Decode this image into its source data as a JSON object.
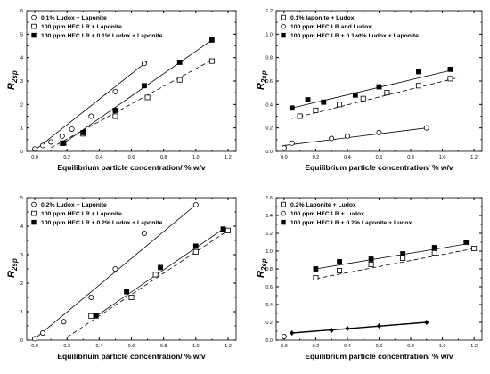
{
  "chart_data": [
    {
      "type": "scatter",
      "title": "",
      "ylabel": "R",
      "ylabel_sub": "2sp",
      "xlabel": "Equilibrium particle concentration/ % w/v",
      "xlim": [
        -0.05,
        1.25
      ],
      "ylim": [
        0,
        6
      ],
      "xticks": [
        "0.0",
        "0.2",
        "0.4",
        "0.6",
        "0.8",
        "1.0",
        "1.2"
      ],
      "yticks": [
        "0",
        "1",
        "2",
        "3",
        "4",
        "5",
        "6"
      ],
      "legend_position": "top-left",
      "series": [
        {
          "name": "0.1% Ludox + Laponite",
          "marker": "open-circle",
          "line": "solid",
          "x": [
            0.0,
            0.05,
            0.1,
            0.17,
            0.23,
            0.35,
            0.5,
            0.68
          ],
          "y": [
            0.1,
            0.25,
            0.4,
            0.65,
            0.95,
            1.5,
            2.55,
            3.75
          ],
          "fit": [
            [
              0.0,
              0.05
            ],
            [
              0.7,
              3.85
            ]
          ]
        },
        {
          "name": "100 ppm HEC LR + Laponite",
          "marker": "open-square",
          "line": "dashed",
          "x": [
            0.17,
            0.3,
            0.5,
            0.7,
            0.9,
            1.1
          ],
          "y": [
            0.35,
            0.75,
            1.5,
            2.3,
            3.05,
            3.85
          ],
          "fit": [
            [
              0.1,
              0.15
            ],
            [
              1.1,
              3.9
            ]
          ]
        },
        {
          "name": "100 ppm HEC LR + 0.1% Ludox + Laponite",
          "marker": "filled-square",
          "line": "solid",
          "x": [
            0.18,
            0.3,
            0.5,
            0.68,
            0.9,
            1.1
          ],
          "y": [
            0.35,
            0.8,
            1.75,
            2.8,
            3.8,
            4.75
          ],
          "fit": [
            [
              0.17,
              0.3
            ],
            [
              1.1,
              4.75
            ]
          ]
        }
      ]
    },
    {
      "type": "scatter",
      "title": "",
      "ylabel": "R",
      "ylabel_sub": "2sp",
      "xlabel": "Equilibrium particle concentration/ % w/v",
      "xlim": [
        -0.05,
        1.25
      ],
      "ylim": [
        0,
        1.2
      ],
      "xticks": [
        "0.0",
        "0.2",
        "0.4",
        "0.6",
        "0.8",
        "1.0",
        "1.2"
      ],
      "yticks": [
        "0.0",
        "0.2",
        "0.4",
        "0.6",
        "0.8",
        "1.0",
        "1.2"
      ],
      "legend_position": "top-left",
      "series": [
        {
          "name": "0.1% laponite + Ludox",
          "marker": "open-square",
          "line": "dashed",
          "x": [
            0.1,
            0.2,
            0.35,
            0.5,
            0.65,
            0.85,
            1.05
          ],
          "y": [
            0.3,
            0.35,
            0.4,
            0.45,
            0.5,
            0.56,
            0.62
          ],
          "fit": [
            [
              0.05,
              0.28
            ],
            [
              1.1,
              0.63
            ]
          ]
        },
        {
          "name": "100 ppm HEC LR and Ludox",
          "marker": "open-circle",
          "line": "solid",
          "x": [
            0.0,
            0.05,
            0.3,
            0.4,
            0.6,
            0.9
          ],
          "y": [
            0.03,
            0.07,
            0.11,
            0.13,
            0.16,
            0.2
          ],
          "fit": [
            [
              0.0,
              0.05
            ],
            [
              0.9,
              0.2
            ]
          ]
        },
        {
          "name": "100 ppm HEC LR + 0.1wt% Ludox + Laponite",
          "marker": "filled-square",
          "line": "solid",
          "x": [
            0.05,
            0.15,
            0.25,
            0.45,
            0.6,
            0.85,
            1.05
          ],
          "y": [
            0.37,
            0.44,
            0.42,
            0.48,
            0.55,
            0.68,
            0.7
          ],
          "fit": [
            [
              0.05,
              0.37
            ],
            [
              1.05,
              0.69
            ]
          ]
        }
      ]
    },
    {
      "type": "scatter",
      "title": "",
      "ylabel": "R",
      "ylabel_sub": "2sp",
      "xlabel": "Equilibrium particle concentration/ % w/v",
      "xlim": [
        -0.05,
        1.25
      ],
      "ylim": [
        0,
        5
      ],
      "xticks": [
        "0.0",
        "0.2",
        "0.4",
        "0.6",
        "0.8",
        "1.0",
        "1.2"
      ],
      "yticks": [
        "0",
        "1",
        "2",
        "3",
        "4",
        "5"
      ],
      "legend_position": "top-left",
      "series": [
        {
          "name": "0.2% Ludox + Laponite",
          "marker": "open-circle",
          "line": "solid",
          "x": [
            0.0,
            0.05,
            0.18,
            0.35,
            0.5,
            0.68,
            1.0
          ],
          "y": [
            0.05,
            0.25,
            0.65,
            1.5,
            2.5,
            3.75,
            4.75
          ],
          "fit": [
            [
              0.0,
              0.05
            ],
            [
              1.0,
              4.75
            ]
          ]
        },
        {
          "name": "100 ppm HEC LR + Laponite",
          "marker": "open-square",
          "line": "dashed",
          "x": [
            0.35,
            0.6,
            0.75,
            1.0,
            1.2
          ],
          "y": [
            0.85,
            1.5,
            2.3,
            3.1,
            3.85
          ],
          "fit": [
            [
              0.2,
              0.1
            ],
            [
              1.2,
              3.85
            ]
          ]
        },
        {
          "name": "100 ppm HEC LR + 0.2% Ludox + Laponite",
          "marker": "filled-square",
          "line": "solid",
          "x": [
            0.38,
            0.57,
            0.78,
            1.0,
            1.17
          ],
          "y": [
            0.85,
            1.7,
            2.55,
            3.3,
            3.9
          ],
          "fit": [
            [
              0.37,
              0.8
            ],
            [
              1.17,
              3.9
            ]
          ]
        }
      ]
    },
    {
      "type": "scatter",
      "title": "",
      "ylabel": "R",
      "ylabel_sub": "2sp",
      "xlabel": "Equilibrium particle concentration/ % w/v",
      "xlim": [
        -0.05,
        1.25
      ],
      "ylim": [
        0,
        1.6
      ],
      "xticks": [
        "0.0",
        "0.2",
        "0.4",
        "0.6",
        "0.8",
        "1.0",
        "1.2"
      ],
      "yticks": [
        "0.0",
        "0.2",
        "0.4",
        "0.6",
        "0.8",
        "1.0",
        "1.2",
        "1.4",
        "1.6"
      ],
      "legend_position": "top-left",
      "series": [
        {
          "name": "0.2% Laponite + Ludox",
          "marker": "open-square",
          "line": "dashed",
          "x": [
            0.2,
            0.35,
            0.55,
            0.75,
            0.95,
            1.2
          ],
          "y": [
            0.7,
            0.78,
            0.85,
            0.92,
            0.98,
            1.03
          ],
          "fit": [
            [
              0.2,
              0.69
            ],
            [
              1.2,
              1.03
            ]
          ]
        },
        {
          "name": "100 ppm HEC LR + Ludox",
          "marker": "open-circle",
          "line": "solid",
          "x": [
            0.0
          ],
          "y": [
            0.04
          ],
          "fit": null
        },
        {
          "name": "100 ppm HEC LR + 0.2% Laponite + Ludox",
          "marker": "filled-square",
          "line": "solid",
          "x": [
            0.2,
            0.35,
            0.55,
            0.75,
            0.95,
            1.15
          ],
          "y": [
            0.8,
            0.88,
            0.91,
            0.97,
            1.04,
            1.1
          ],
          "fit": [
            [
              0.2,
              0.8
            ],
            [
              1.15,
              1.08
            ]
          ]
        },
        {
          "name": "",
          "marker": "filled-diamond",
          "line": "solid",
          "x": [
            0.05,
            0.3,
            0.4,
            0.6,
            0.9
          ],
          "y": [
            0.08,
            0.11,
            0.13,
            0.16,
            0.2
          ],
          "fit": [
            [
              0.05,
              0.08
            ],
            [
              0.9,
              0.2
            ]
          ]
        }
      ]
    }
  ]
}
